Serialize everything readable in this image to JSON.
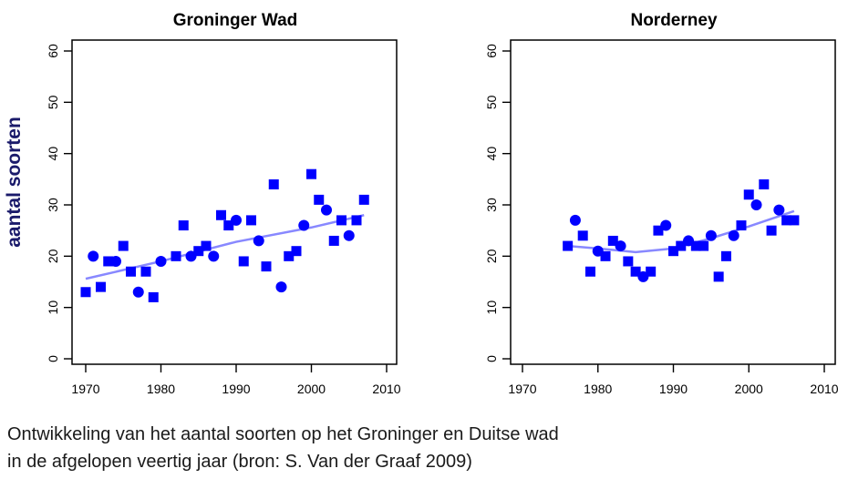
{
  "ylabel": "aantal soorten",
  "caption": [
    "Ontwikkeling van het aantal soorten op het Groninger en Duitse wad",
    "in de afgelopen veertig jaar (bron: S. Van der Graaf 2009)"
  ],
  "colors": {
    "points": "#0000ff",
    "trend": "#8888ff",
    "axis": "#000000"
  },
  "chart_data": [
    {
      "type": "scatter",
      "title": "Groninger Wad",
      "xlim": [
        1970,
        2010
      ],
      "ylim": [
        0,
        60
      ],
      "xticks": [
        1970,
        1980,
        1990,
        2000,
        2010
      ],
      "yticks": [
        0,
        10,
        20,
        30,
        40,
        50,
        60
      ],
      "grid": false,
      "x": [
        1970,
        1971,
        1972,
        1973,
        1974,
        1975,
        1976,
        1977,
        1978,
        1979,
        1980,
        1982,
        1983,
        1984,
        1985,
        1986,
        1987,
        1988,
        1989,
        1990,
        1991,
        1992,
        1993,
        1994,
        1995,
        1996,
        1997,
        1998,
        1999,
        2000,
        2001,
        2002,
        2003,
        2004,
        2005,
        2006,
        2007
      ],
      "y": [
        13,
        20,
        14,
        19,
        19,
        22,
        17,
        13,
        17,
        12,
        19,
        20,
        26,
        20,
        21,
        22,
        20,
        28,
        26,
        27,
        19,
        27,
        23,
        18,
        34,
        14,
        20,
        21,
        26,
        36,
        31,
        29,
        23,
        27,
        24,
        27,
        31
      ],
      "trend": {
        "x": [
          1970,
          1980,
          1990,
          2000,
          2007
        ],
        "y": [
          15.6,
          19.0,
          22.8,
          25.6,
          28.0
        ]
      }
    },
    {
      "type": "scatter",
      "title": "Norderney",
      "xlim": [
        1970,
        2010
      ],
      "ylim": [
        0,
        60
      ],
      "xticks": [
        1970,
        1980,
        1990,
        2000,
        2010
      ],
      "yticks": [
        0,
        10,
        20,
        30,
        40,
        50,
        60
      ],
      "grid": false,
      "x": [
        1976,
        1977,
        1978,
        1979,
        1980,
        1981,
        1982,
        1983,
        1984,
        1985,
        1986,
        1987,
        1988,
        1989,
        1990,
        1991,
        1992,
        1993,
        1994,
        1995,
        1996,
        1997,
        1998,
        1999,
        2000,
        2001,
        2002,
        2003,
        2004,
        2005,
        2006
      ],
      "y": [
        22,
        27,
        24,
        17,
        21,
        20,
        23,
        22,
        19,
        17,
        16,
        17,
        25,
        26,
        21,
        22,
        23,
        22,
        22,
        24,
        16,
        20,
        24,
        26,
        32,
        30,
        34,
        25,
        29,
        27,
        27
      ],
      "trend": {
        "x": [
          1976,
          1980,
          1985,
          1990,
          1995,
          2000,
          2006
        ],
        "y": [
          22.0,
          21.5,
          20.8,
          21.5,
          23.5,
          25.8,
          28.8
        ]
      }
    }
  ]
}
